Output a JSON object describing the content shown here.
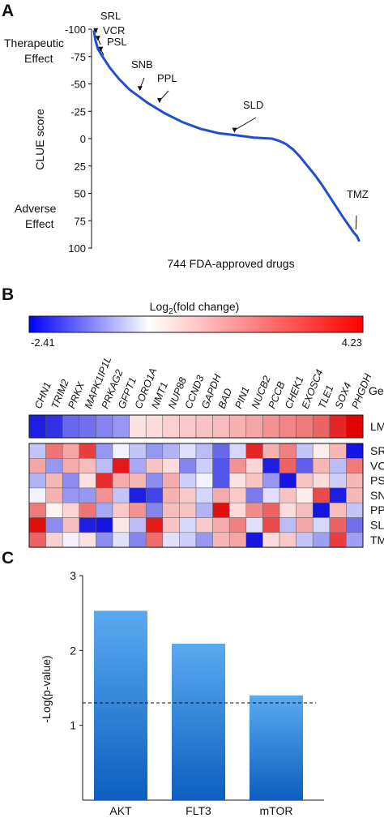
{
  "chart_data": [
    {
      "panel_label": "A",
      "type": "line",
      "ylabel": "CLUE score",
      "xlabel": "744 FDA-approved drugs",
      "y_ticks": [
        "-100",
        "-75",
        "-50",
        "-25",
        "0",
        "25",
        "50",
        "75",
        "100"
      ],
      "ylim": [
        -100,
        100
      ],
      "xlim": [
        1,
        744
      ],
      "y_inverted": true,
      "top_annotation": "Therapeutic\nEffect",
      "bottom_annotation": "Adverse\nEffect",
      "line_color": "#1f4fd0",
      "series": [
        {
          "x": [
            1,
            5,
            12,
            25,
            45,
            70,
            100,
            150,
            200,
            250,
            300,
            350,
            400,
            450,
            500,
            520,
            540,
            560,
            580,
            600,
            620,
            640,
            660,
            680,
            700,
            715,
            730,
            738,
            744
          ],
          "y": [
            -98,
            -90,
            -82,
            -75,
            -65,
            -55,
            -45,
            -33,
            -23,
            -15,
            -9,
            -5,
            -3,
            -1,
            0,
            2,
            5,
            10,
            17,
            25,
            33,
            42,
            52,
            62,
            72,
            79,
            86,
            89,
            93
          ]
        }
      ],
      "annotations": [
        {
          "label": "SRL",
          "x": 6,
          "y": -95
        },
        {
          "label": "VCR",
          "x": 12,
          "y": -88
        },
        {
          "label": "PSL",
          "x": 20,
          "y": -78
        },
        {
          "label": "SNB",
          "x": 130,
          "y": -42
        },
        {
          "label": "PPL",
          "x": 185,
          "y": -31
        },
        {
          "label": "SLD",
          "x": 395,
          "y": -4
        },
        {
          "label": "TMZ",
          "x": 738,
          "y": 83
        }
      ]
    },
    {
      "panel_label": "B",
      "type": "heatmap",
      "colorbar_title_main": "Log",
      "colorbar_title_sub": "2",
      "colorbar_title_rest": "(fold change)",
      "colorbar_min": "-2.41",
      "colorbar_max": "4.23",
      "vmin": -2.41,
      "vmax": 4.23,
      "gene_header": "Gene",
      "genes": [
        "CHN1",
        "TRIM2",
        "PRKX",
        "MAPK1IP1L",
        "PRKAG2",
        "GFPT1",
        "CORO1A",
        "NMT1",
        "NUP88",
        "CCND3",
        "GAPDH",
        "BAD",
        "PIN1",
        "NUCB2",
        "PCCB",
        "CHEK1",
        "EXOSC4",
        "TLE1",
        "SOX4",
        "PHGDH"
      ],
      "lm_row": {
        "label": "LM",
        "values": [
          -2.3,
          -2.1,
          -1.5,
          -1.4,
          -1.2,
          -1.0,
          0.5,
          0.6,
          0.8,
          0.9,
          1.0,
          1.1,
          1.3,
          1.5,
          1.8,
          2.0,
          2.2,
          2.6,
          3.6,
          4.2
        ]
      },
      "rows": [
        {
          "label": "SRL",
          "values": [
            -0.5,
            2.3,
            1.5,
            3.2,
            -1.0,
            0.0,
            -0.5,
            -1.0,
            -0.7,
            -0.2,
            -0.6,
            -1.5,
            -0.3,
            3.6,
            1.3,
            2.1,
            -0.5,
            0.3,
            1.2,
            -2.4
          ]
        },
        {
          "label": "VCR",
          "values": [
            1.5,
            -1.0,
            1.4,
            1.1,
            -0.6,
            3.8,
            -0.8,
            1.0,
            0.6,
            -1.2,
            -0.4,
            -1.7,
            1.8,
            0.7,
            -2.3,
            2.6,
            -1.6,
            1.2,
            -0.6,
            2.2
          ]
        },
        {
          "label": "PSL",
          "values": [
            -0.7,
            1.2,
            -1.1,
            0.5,
            3.5,
            1.4,
            1.2,
            -1.1,
            1.4,
            -0.4,
            0.0,
            -1.7,
            0.5,
            1.0,
            -1.0,
            -2.4,
            1.0,
            0.6,
            -0.4,
            1.2
          ]
        },
        {
          "label": "SNB",
          "values": [
            0.0,
            1.3,
            -1.0,
            -1.0,
            1.8,
            -0.5,
            -2.3,
            -1.9,
            1.3,
            0.9,
            -0.3,
            1.4,
            0.9,
            -1.3,
            -0.2,
            1.0,
            0.3,
            3.0,
            -2.3,
            1.2
          ]
        },
        {
          "label": "PPL",
          "values": [
            2.2,
            0.2,
            0.7,
            2.3,
            -0.8,
            0.9,
            1.8,
            -1.2,
            1.1,
            1.0,
            -0.7,
            4.0,
            0.6,
            1.9,
            2.6,
            0.6,
            1.1,
            -2.4,
            1.1,
            -0.5
          ]
        },
        {
          "label": "SLD",
          "values": [
            4.0,
            -1.1,
            1.1,
            -2.3,
            -2.4,
            0.4,
            -0.6,
            3.8,
            1.0,
            -0.3,
            0.9,
            1.4,
            2.1,
            -0.2,
            3.0,
            -0.6,
            1.5,
            -0.3,
            2.6,
            -1.4
          ]
        },
        {
          "label": "TMZ",
          "values": [
            2.6,
            0.8,
            0.0,
            0.5,
            -1.1,
            -0.2,
            -1.2,
            2.4,
            -0.2,
            -0.4,
            -1.0,
            1.2,
            1.5,
            -2.4,
            0.6,
            0.9,
            -0.5,
            -0.9,
            3.2,
            -0.9
          ]
        }
      ]
    },
    {
      "panel_label": "C",
      "type": "bar",
      "ylabel": "-Log(p-value)",
      "categories": [
        "AKT",
        "FLT3",
        "mTOR"
      ],
      "values": [
        2.53,
        2.09,
        1.4
      ],
      "ylim": [
        0,
        3
      ],
      "y_ticks": [
        "1",
        "2",
        "3"
      ],
      "threshold": 1.3,
      "threshold_style": "dashed",
      "bar_color_top": "#5aaaf0",
      "bar_color_bottom": "#0d5ec0"
    }
  ]
}
